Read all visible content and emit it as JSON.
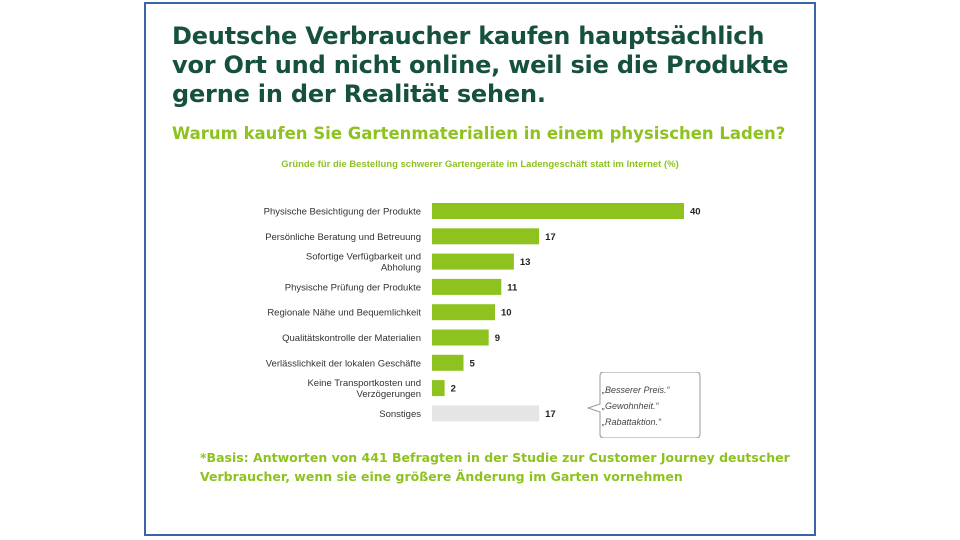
{
  "headline": "Deutsche Verbraucher kaufen hauptsächlich vor Ort und nicht online, weil sie die Produkte gerne in der Realität sehen.",
  "question": "Warum kaufen Sie Gartenmaterialien in einem physischen Laden?",
  "callout_quotes": [
    "„Besserer Preis.“",
    "„Gewohnheit.“",
    "„Rabattaktion.“"
  ],
  "footnote": "*Basis: Antworten von 441 Befragten in der Studie zur Customer Journey deutscher Verbraucher, wenn sie eine größere Änderung im Garten vornehmen",
  "colors": {
    "bar": "#8dc21f",
    "bar_other": "#e5e5e5",
    "headline": "#16503f",
    "accent": "#8dc21f"
  },
  "chart_data": {
    "type": "bar",
    "orientation": "horizontal",
    "title": "Gründe für die Bestellung schwerer Gartengeräte im Ladengeschäft statt im Internet (%)",
    "categories": [
      "Physische Besichtigung der Produkte",
      "Persönliche Beratung und Betreuung",
      "Sofortige Verfügbarkeit und Abholung",
      "Physische Prüfung der Produkte",
      "Regionale Nähe und Bequemlichkeit",
      "Qualitätskontrolle der Materialien",
      "Verlässlichkeit der lokalen Geschäfte",
      "Keine Transportkosten und Verzögerungen",
      "Sonstiges"
    ],
    "category_lines": [
      [
        "Physische Besichtigung der Produkte"
      ],
      [
        "Persönliche Beratung und Betreuung"
      ],
      [
        "Sofortige Verfügbarkeit und",
        "Abholung"
      ],
      [
        "Physische Prüfung der Produkte"
      ],
      [
        "Regionale Nähe und Bequemlichkeit"
      ],
      [
        "Qualitätskontrolle der Materialien"
      ],
      [
        "Verlässlichkeit der lokalen Geschäfte"
      ],
      [
        "Keine Transportkosten und",
        "Verzögerungen"
      ],
      [
        "Sonstiges"
      ]
    ],
    "values": [
      40,
      17,
      13,
      11,
      10,
      9,
      5,
      2,
      17
    ],
    "highlight": [
      false,
      false,
      false,
      false,
      false,
      false,
      false,
      false,
      true
    ],
    "xlim": [
      0,
      40
    ],
    "grid": false,
    "legend": "none"
  }
}
